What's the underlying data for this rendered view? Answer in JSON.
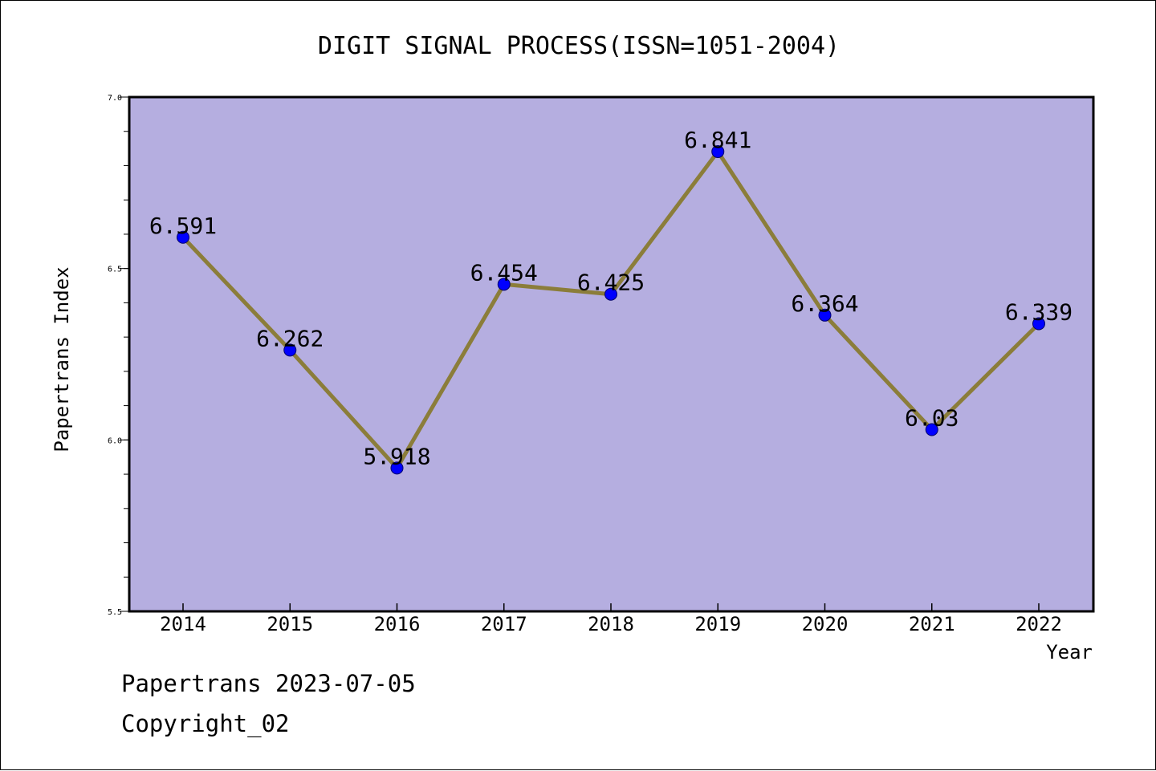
{
  "chart_data": {
    "type": "line",
    "title": "DIGIT SIGNAL PROCESS(ISSN=1051-2004)",
    "xlabel": "Year",
    "ylabel": "Papertrans Index",
    "categories": [
      "2014",
      "2015",
      "2016",
      "2017",
      "2018",
      "2019",
      "2020",
      "2021",
      "2022"
    ],
    "series": [
      {
        "values": [
          6.591,
          6.262,
          5.918,
          6.454,
          6.425,
          6.841,
          6.364,
          6.03,
          6.339
        ],
        "data_labels": [
          "6.591",
          "6.262",
          "5.918",
          "6.454",
          "6.425",
          "6.841",
          "6.364",
          "6.03",
          "6.339"
        ],
        "line_color": "#8b7d3a",
        "marker_color": "#0000ff"
      }
    ],
    "ylim": [
      5.5,
      7.0
    ],
    "yticks": [
      "5.5",
      "6.0",
      "6.5",
      "7.0"
    ],
    "grid": false,
    "plot_background": "#b5aee0"
  },
  "footer": {
    "line1": "Papertrans 2023-07-05",
    "line2": "Copyright_02"
  }
}
